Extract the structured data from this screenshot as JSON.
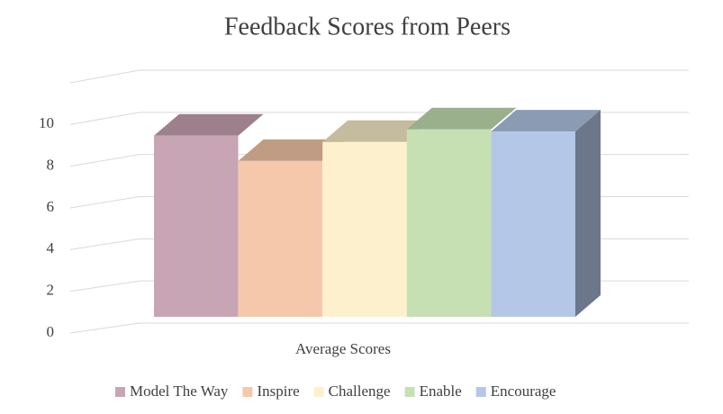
{
  "chart_data": {
    "type": "bar3d",
    "title": "Feedback Scores from Peers",
    "categories": [
      "Average Scores"
    ],
    "series": [
      {
        "name": "Model The Way",
        "color": "#c8a5b5",
        "values": [
          8.6
        ]
      },
      {
        "name": "Inspire",
        "color": "#f6c8ab",
        "values": [
          7.4
        ]
      },
      {
        "name": "Challenge",
        "color": "#fdf0cc",
        "values": [
          8.3
        ]
      },
      {
        "name": "Enable",
        "color": "#c6e0b4",
        "values": [
          8.9
        ]
      },
      {
        "name": "Encourage",
        "color": "#b4c7e7",
        "values": [
          8.8
        ]
      }
    ],
    "ylim": [
      0,
      12
    ],
    "yticks": [
      0,
      2,
      4,
      6,
      8,
      10
    ],
    "grid": true,
    "legend": "bottom"
  }
}
